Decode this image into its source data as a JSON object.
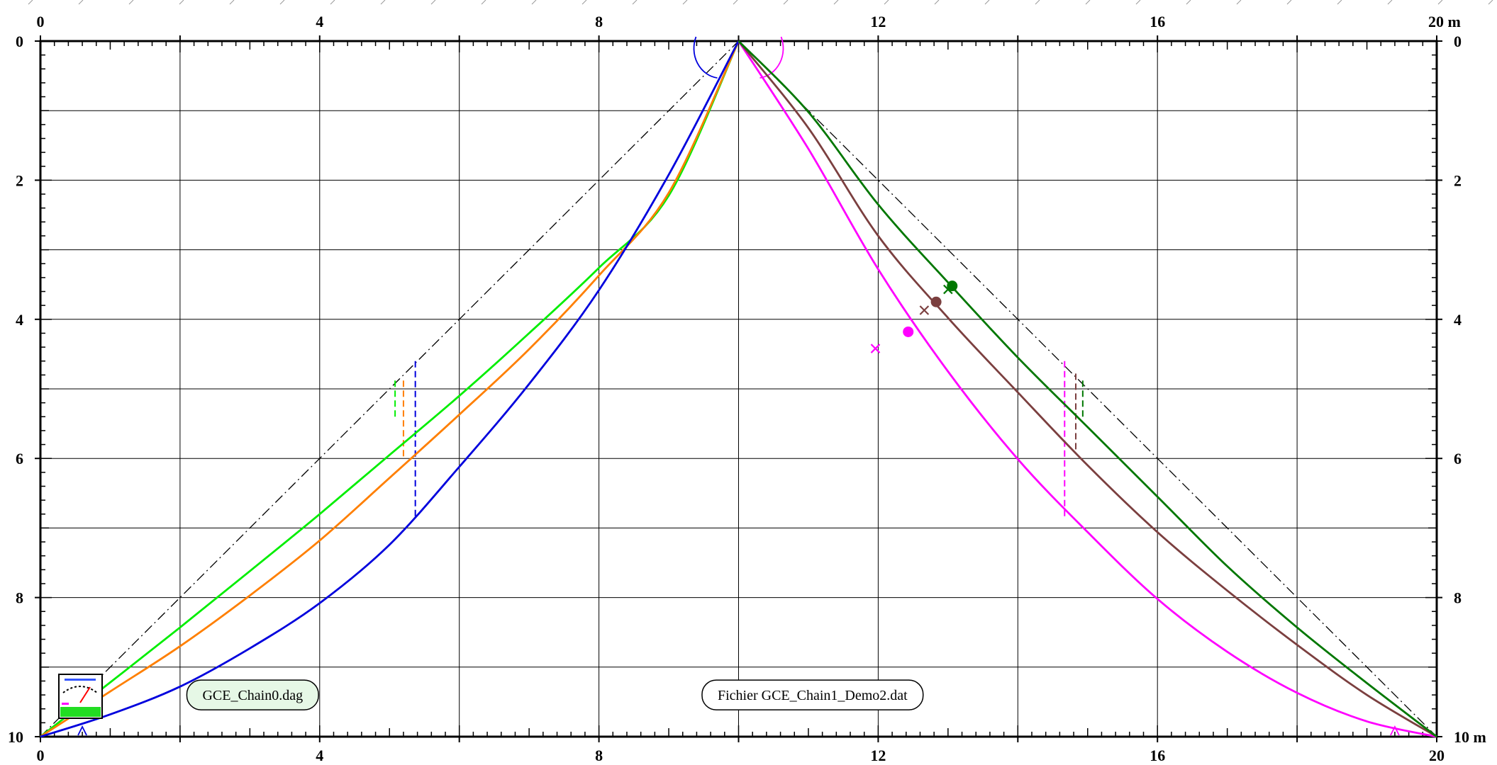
{
  "chart_data": {
    "type": "line",
    "title": "",
    "xlabel": "",
    "ylabel": "",
    "x_unit_label": "20 m",
    "y_unit_label": "10 m",
    "xlim": [
      0,
      20
    ],
    "ylim": [
      0,
      10
    ],
    "y_inverted": true,
    "grid": true,
    "x_ticks": [
      {
        "value": 0,
        "label": "0"
      },
      {
        "value": 4,
        "label": "4"
      },
      {
        "value": 8,
        "label": "8"
      },
      {
        "value": 12,
        "label": "12"
      },
      {
        "value": 16,
        "label": "16"
      },
      {
        "value": 20,
        "label": "20 m"
      }
    ],
    "bottom_x_ticks": [
      {
        "value": 0,
        "label": "0"
      },
      {
        "value": 4,
        "label": "4"
      },
      {
        "value": 8,
        "label": "8"
      },
      {
        "value": 12,
        "label": "12"
      },
      {
        "value": 16,
        "label": "16"
      },
      {
        "value": 20,
        "label": "20"
      }
    ],
    "y_ticks": [
      {
        "value": 0,
        "label": "0"
      },
      {
        "value": 2,
        "label": "2"
      },
      {
        "value": 4,
        "label": "4"
      },
      {
        "value": 6,
        "label": "6"
      },
      {
        "value": 8,
        "label": "8"
      },
      {
        "value": 10,
        "label": "10"
      }
    ],
    "right_y_ticks": [
      {
        "value": 0,
        "label": "0"
      },
      {
        "value": 2,
        "label": "2"
      },
      {
        "value": 4,
        "label": "4"
      },
      {
        "value": 6,
        "label": "6"
      },
      {
        "value": 8,
        "label": "8"
      },
      {
        "value": 10,
        "label": "10 m"
      }
    ],
    "reference_lines": [
      {
        "color": "#000000",
        "style": "dashdot",
        "points": [
          [
            0,
            10
          ],
          [
            10,
            0
          ]
        ]
      },
      {
        "color": "#000000",
        "style": "dashdot",
        "points": [
          [
            10,
            0
          ],
          [
            20,
            10
          ]
        ]
      }
    ],
    "series": [
      {
        "color": "#00ee00",
        "points": [
          [
            0,
            10
          ],
          [
            1,
            9.22
          ],
          [
            2,
            8.43
          ],
          [
            3,
            7.62
          ],
          [
            4,
            6.8
          ],
          [
            5,
            5.95
          ],
          [
            6,
            5.1
          ],
          [
            7,
            4.2
          ],
          [
            8,
            3.26
          ],
          [
            9,
            2.22
          ],
          [
            10,
            0
          ]
        ]
      },
      {
        "color": "#ff7f00",
        "points": [
          [
            0,
            10
          ],
          [
            1,
            9.35
          ],
          [
            2,
            8.7
          ],
          [
            3,
            7.97
          ],
          [
            4,
            7.18
          ],
          [
            5,
            6.28
          ],
          [
            6,
            5.37
          ],
          [
            7,
            4.43
          ],
          [
            8,
            3.37
          ],
          [
            9,
            2.18
          ],
          [
            10,
            0
          ]
        ]
      },
      {
        "color": "#0000dd",
        "points": [
          [
            0,
            10
          ],
          [
            1,
            9.68
          ],
          [
            2,
            9.28
          ],
          [
            3,
            8.73
          ],
          [
            4,
            8.08
          ],
          [
            5,
            7.24
          ],
          [
            6,
            6.12
          ],
          [
            7,
            4.93
          ],
          [
            8,
            3.58
          ],
          [
            9,
            1.92
          ],
          [
            10,
            0
          ]
        ]
      },
      {
        "color": "#ff00ff",
        "points": [
          [
            10,
            0
          ],
          [
            11,
            1.55
          ],
          [
            12,
            3.28
          ],
          [
            13,
            4.75
          ],
          [
            14,
            6.01
          ],
          [
            15,
            7.06
          ],
          [
            16,
            8.02
          ],
          [
            17,
            8.78
          ],
          [
            18,
            9.37
          ],
          [
            19,
            9.78
          ],
          [
            20,
            10
          ]
        ]
      },
      {
        "color": "#7b3f3f",
        "points": [
          [
            10,
            0
          ],
          [
            11,
            1.25
          ],
          [
            12,
            2.8
          ],
          [
            13,
            3.98
          ],
          [
            14,
            5.05
          ],
          [
            15,
            6.1
          ],
          [
            16,
            7.06
          ],
          [
            17,
            7.9
          ],
          [
            18,
            8.68
          ],
          [
            19,
            9.4
          ],
          [
            20,
            10
          ]
        ]
      },
      {
        "color": "#007700",
        "points": [
          [
            10,
            0
          ],
          [
            11,
            1.02
          ],
          [
            12,
            2.35
          ],
          [
            13,
            3.47
          ],
          [
            14,
            4.55
          ],
          [
            15,
            5.55
          ],
          [
            16,
            6.55
          ],
          [
            17,
            7.55
          ],
          [
            18,
            8.43
          ],
          [
            19,
            9.23
          ],
          [
            20,
            10
          ]
        ]
      }
    ],
    "points": [
      {
        "color": "#ff00ff",
        "marker": "circle",
        "x": 12.43,
        "y": 4.18
      },
      {
        "color": "#7b3f3f",
        "marker": "circle",
        "x": 12.83,
        "y": 3.75
      },
      {
        "color": "#007700",
        "marker": "circle",
        "x": 13.06,
        "y": 3.52
      },
      {
        "color": "#ff00ff",
        "marker": "cross",
        "x": 11.96,
        "y": 4.42
      },
      {
        "color": "#7b3f3f",
        "marker": "cross",
        "x": 12.66,
        "y": 3.87
      },
      {
        "color": "#007700",
        "marker": "cross",
        "x": 13.0,
        "y": 3.57
      }
    ],
    "dashed_verticals": [
      {
        "color": "#00ee00",
        "x": 5.08,
        "y_top": 4.88,
        "y_bottom": 5.42
      },
      {
        "color": "#ff7f00",
        "x": 5.2,
        "y_top": 4.88,
        "y_bottom": 5.98
      },
      {
        "color": "#0000dd",
        "x": 5.37,
        "y_top": 4.6,
        "y_bottom": 6.88
      },
      {
        "color": "#ff00ff",
        "x": 14.67,
        "y_top": 4.6,
        "y_bottom": 6.88
      },
      {
        "color": "#7b3f3f",
        "x": 14.83,
        "y_top": 4.78,
        "y_bottom": 5.9
      },
      {
        "color": "#007700",
        "x": 14.93,
        "y_top": 4.88,
        "y_bottom": 5.42
      }
    ],
    "annotations": [
      {
        "text": "GCE_Chain0.dag",
        "x": 3.04,
        "y": 9.4,
        "fill": "#e6f8e6"
      },
      {
        "text": "Fichier GCE_Chain1_Demo2.dat",
        "x": 11.06,
        "y": 9.4,
        "fill": "#ffffff"
      }
    ]
  }
}
